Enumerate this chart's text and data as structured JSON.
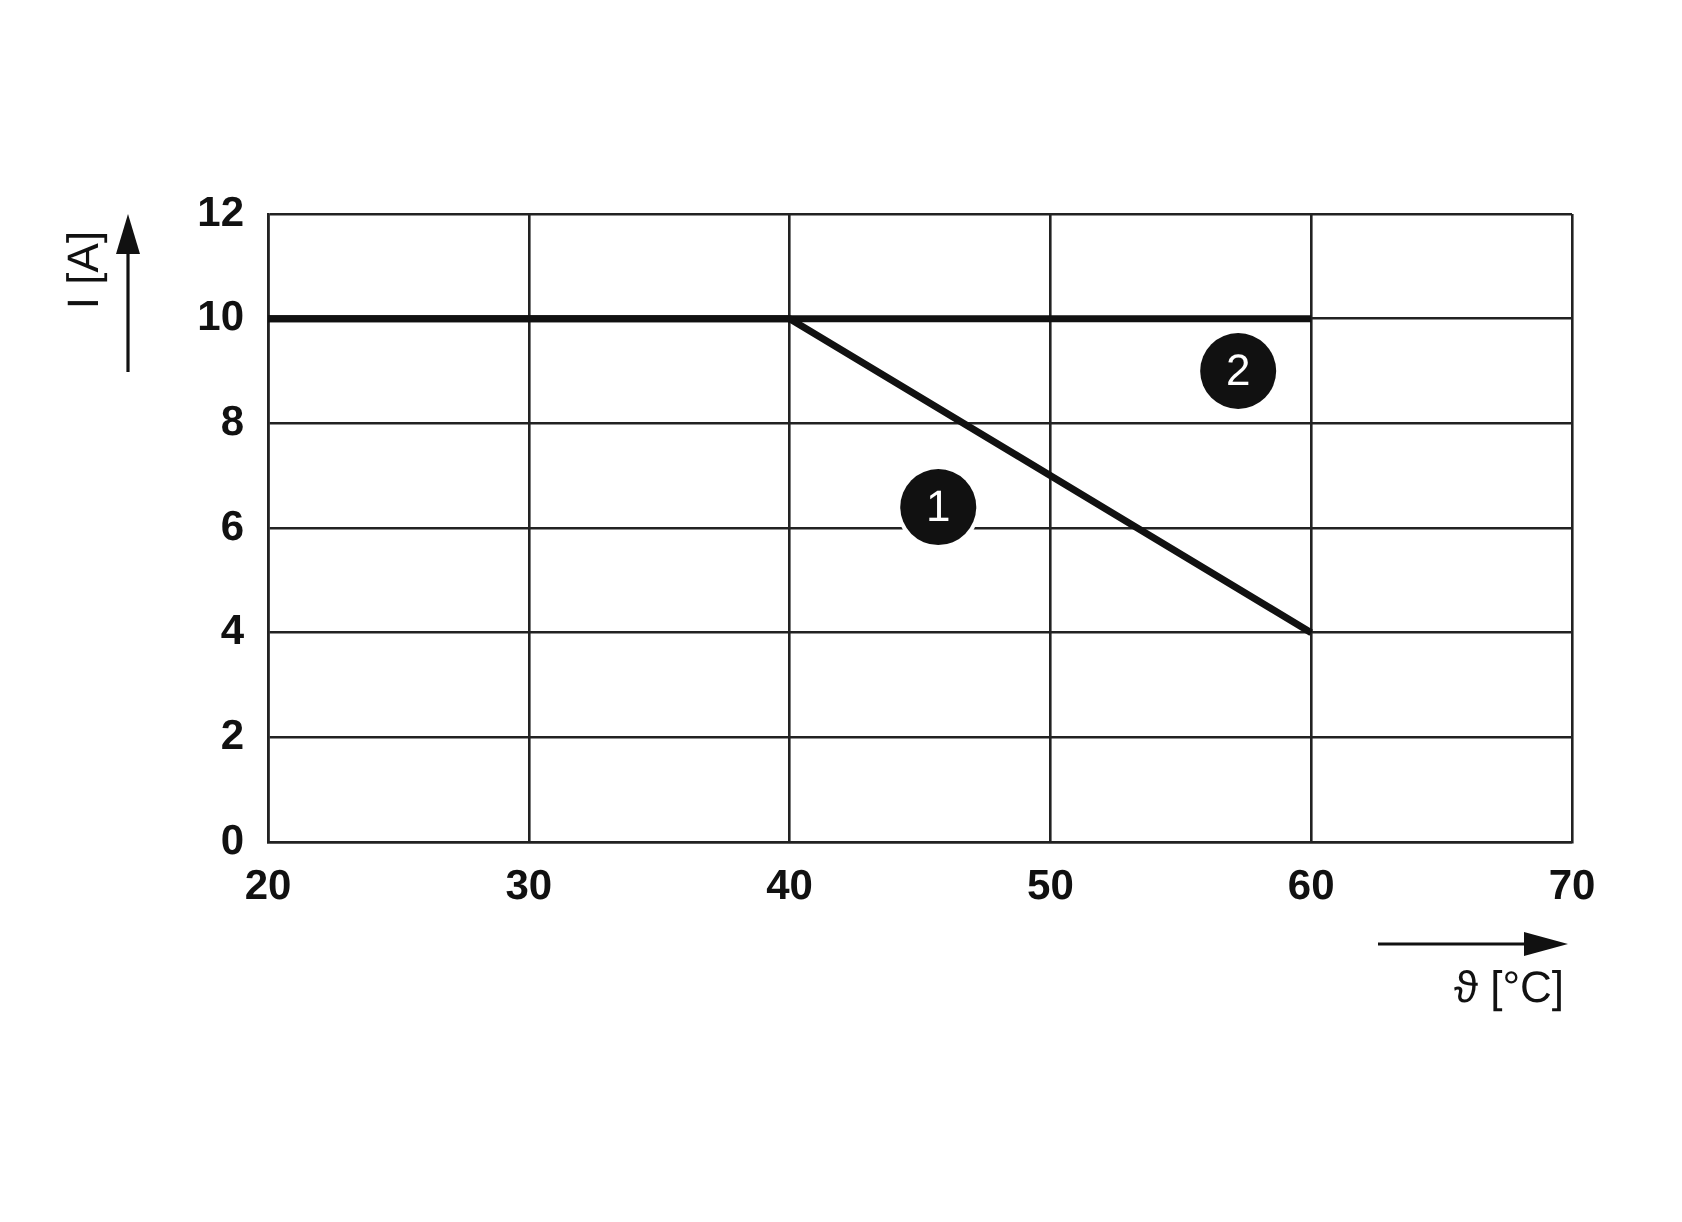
{
  "chart_data": {
    "type": "line",
    "xlabel": "ϑ [°C]",
    "ylabel": "I [A]",
    "series": [
      {
        "color": "#111111",
        "x": [
          20,
          40,
          60
        ],
        "values": [
          10,
          10,
          4
        ]
      },
      {
        "color": "#111111",
        "x": [
          20,
          60
        ],
        "values": [
          10,
          10
        ]
      }
    ],
    "xlim": [
      20,
      70
    ],
    "xticks": [
      20,
      30,
      40,
      50,
      60,
      70
    ],
    "ylim": [
      0,
      12
    ],
    "yticks": [
      0,
      2,
      4,
      6,
      8,
      10,
      12
    ],
    "grid": true,
    "marker": "none",
    "line_style": "solid",
    "annotations": [
      {
        "text": "1",
        "x": 45.7,
        "y": 6.4
      },
      {
        "text": "2",
        "x": 57.2,
        "y": 9
      }
    ]
  }
}
